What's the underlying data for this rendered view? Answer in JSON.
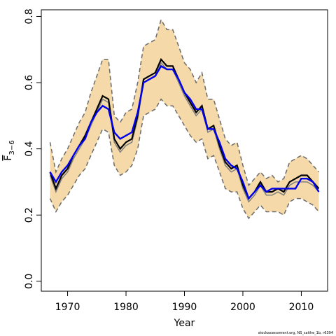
{
  "chart_data": {
    "type": "line",
    "xlabel": "Year",
    "ylabel": {
      "base": "F",
      "subscript": "3−6"
    },
    "xlim": [
      1965.5,
      2014.5
    ],
    "ylim": [
      -0.03,
      0.82
    ],
    "x_ticks": [
      1970,
      1980,
      1990,
      2000,
      2010
    ],
    "y_ticks": [
      0.0,
      0.2,
      0.4,
      0.6,
      0.8
    ],
    "grid": false,
    "legend": "none",
    "colors": {
      "band": "#f5d9a8",
      "bounds": "#6b6b6b",
      "black": "#000000",
      "blue": "#0000ee",
      "gray": "#7f7f7f"
    },
    "x": [
      1967,
      1968,
      1969,
      1970,
      1971,
      1972,
      1973,
      1974,
      1975,
      1976,
      1977,
      1978,
      1979,
      1980,
      1981,
      1982,
      1983,
      1984,
      1985,
      1986,
      1987,
      1988,
      1989,
      1990,
      1991,
      1992,
      1993,
      1994,
      1995,
      1996,
      1997,
      1998,
      1999,
      2000,
      2001,
      2002,
      2003,
      2004,
      2005,
      2006,
      2007,
      2008,
      2009,
      2010,
      2011,
      2012,
      2013
    ],
    "series": [
      {
        "id": "upper",
        "values": [
          0.42,
          0.33,
          0.37,
          0.4,
          0.44,
          0.48,
          0.51,
          0.57,
          0.62,
          0.67,
          0.67,
          0.5,
          0.48,
          0.51,
          0.52,
          0.6,
          0.71,
          0.72,
          0.73,
          0.79,
          0.76,
          0.76,
          0.71,
          0.66,
          0.64,
          0.6,
          0.63,
          0.55,
          0.55,
          0.49,
          0.43,
          0.41,
          0.42,
          0.35,
          0.29,
          0.31,
          0.33,
          0.31,
          0.32,
          0.3,
          0.31,
          0.36,
          0.37,
          0.38,
          0.37,
          0.35,
          0.33
        ]
      },
      {
        "id": "lower",
        "values": [
          0.25,
          0.21,
          0.24,
          0.26,
          0.29,
          0.32,
          0.34,
          0.38,
          0.42,
          0.46,
          0.45,
          0.35,
          0.32,
          0.33,
          0.35,
          0.4,
          0.5,
          0.51,
          0.52,
          0.55,
          0.53,
          0.53,
          0.5,
          0.47,
          0.44,
          0.42,
          0.43,
          0.37,
          0.38,
          0.33,
          0.28,
          0.27,
          0.27,
          0.22,
          0.19,
          0.21,
          0.23,
          0.21,
          0.21,
          0.21,
          0.2,
          0.24,
          0.25,
          0.25,
          0.24,
          0.23,
          0.21
        ]
      },
      {
        "id": "black",
        "values": [
          0.33,
          0.28,
          0.32,
          0.34,
          0.38,
          0.41,
          0.44,
          0.48,
          0.52,
          0.56,
          0.55,
          0.43,
          0.4,
          0.42,
          0.43,
          0.5,
          0.61,
          0.62,
          0.63,
          0.67,
          0.65,
          0.65,
          0.61,
          0.57,
          0.54,
          0.51,
          0.53,
          0.46,
          0.47,
          0.41,
          0.36,
          0.34,
          0.35,
          0.29,
          0.25,
          0.27,
          0.3,
          0.27,
          0.27,
          0.28,
          0.27,
          0.3,
          0.31,
          0.32,
          0.32,
          0.3,
          0.28
        ]
      },
      {
        "id": "gray",
        "values": [
          0.32,
          0.27,
          0.31,
          0.33,
          0.37,
          0.4,
          0.43,
          0.47,
          0.51,
          0.55,
          0.54,
          0.42,
          0.39,
          0.41,
          0.42,
          0.49,
          0.6,
          0.61,
          0.62,
          0.66,
          0.64,
          0.64,
          0.6,
          0.56,
          0.53,
          0.5,
          0.52,
          0.45,
          0.46,
          0.4,
          0.35,
          0.33,
          0.34,
          0.28,
          0.24,
          0.26,
          0.29,
          0.26,
          0.26,
          0.27,
          0.26,
          0.29,
          0.3,
          0.3,
          0.3,
          0.29,
          0.27
        ]
      },
      {
        "id": "blue",
        "values": [
          0.33,
          0.3,
          0.33,
          0.35,
          0.38,
          0.41,
          0.43,
          0.48,
          0.51,
          0.53,
          0.52,
          0.45,
          0.43,
          0.44,
          0.45,
          0.51,
          0.6,
          0.61,
          0.62,
          0.65,
          0.64,
          0.64,
          0.61,
          0.57,
          0.55,
          0.52,
          0.52,
          0.46,
          0.46,
          0.42,
          0.37,
          0.35,
          0.34,
          0.3,
          0.25,
          0.27,
          0.29,
          0.27,
          0.28,
          0.28,
          0.28,
          0.28,
          0.28,
          0.31,
          0.31,
          0.3,
          0.27
        ]
      }
    ]
  },
  "caption": "stockassessment.org, NS_saithe_1b, r6394"
}
